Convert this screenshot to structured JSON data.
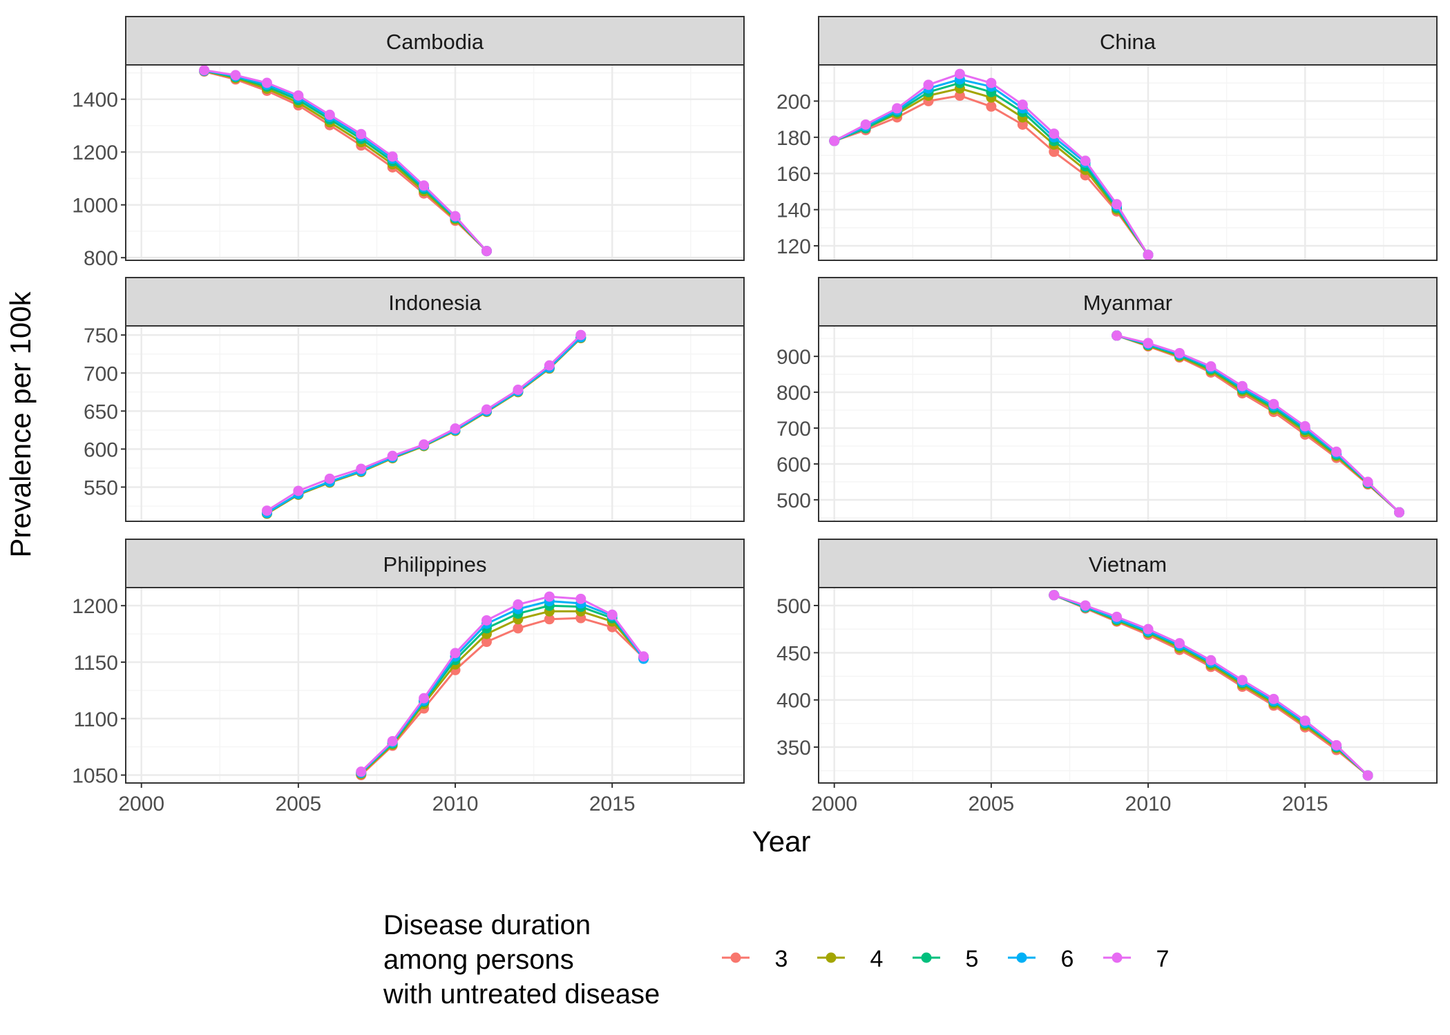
{
  "figure": {
    "xlabel": "Year",
    "ylabel": "Prevalence per 100k",
    "legend_title": [
      "Disease duration",
      "among persons",
      "with untreated disease"
    ],
    "legend_position": "bottom"
  },
  "colors": {
    "3": "#F8766D",
    "4": "#A3A500",
    "5": "#00BF7D",
    "6": "#00B0F6",
    "7": "#E76BF3",
    "strip_bg": "#D9D9D9",
    "panel_border": "#333333",
    "grid_major": "#EBEBEB",
    "grid_minor": "#F5F5F5"
  },
  "chart_data": [
    {
      "type": "line",
      "panel": "Cambodia",
      "x": [
        2002,
        2003,
        2004,
        2005,
        2006,
        2007,
        2008,
        2009,
        2010,
        2011
      ],
      "xlim": [
        1999.5,
        2019.2
      ],
      "xticks": [
        2000,
        2005,
        2010,
        2015
      ],
      "ylim": [
        790,
        1530
      ],
      "yticks": [
        800,
        1000,
        1200,
        1400
      ],
      "series": [
        {
          "name": "3",
          "values": [
            1505,
            1475,
            1432,
            1377,
            1302,
            1225,
            1142,
            1043,
            940,
            825
          ]
        },
        {
          "name": "4",
          "values": [
            1507,
            1480,
            1440,
            1387,
            1313,
            1238,
            1154,
            1052,
            945,
            825
          ]
        },
        {
          "name": "5",
          "values": [
            1508,
            1484,
            1448,
            1397,
            1324,
            1250,
            1165,
            1060,
            950,
            825
          ]
        },
        {
          "name": "6",
          "values": [
            1508,
            1487,
            1455,
            1406,
            1333,
            1260,
            1175,
            1067,
            954,
            825
          ]
        },
        {
          "name": "7",
          "values": [
            1510,
            1491,
            1462,
            1414,
            1341,
            1268,
            1183,
            1073,
            957,
            825
          ]
        }
      ]
    },
    {
      "type": "line",
      "panel": "China",
      "x": [
        2000,
        2001,
        2002,
        2003,
        2004,
        2005,
        2006,
        2007,
        2008,
        2009,
        2010
      ],
      "xlim": [
        1999.5,
        2019.2
      ],
      "xticks": [
        2000,
        2005,
        2010,
        2015
      ],
      "ylim": [
        112,
        220
      ],
      "yticks": [
        120,
        140,
        160,
        180,
        200
      ],
      "series": [
        {
          "name": "3",
          "values": [
            178,
            184,
            191,
            200,
            203,
            197,
            187,
            172,
            159,
            139,
            115
          ]
        },
        {
          "name": "4",
          "values": [
            178,
            185,
            193,
            203,
            207,
            202,
            191,
            176,
            162,
            140,
            115
          ]
        },
        {
          "name": "5",
          "values": [
            178,
            185,
            194,
            205,
            210,
            205,
            194,
            178,
            164,
            141,
            115
          ]
        },
        {
          "name": "6",
          "values": [
            178,
            186,
            195,
            207,
            212,
            208,
            196,
            180,
            166,
            142,
            115
          ]
        },
        {
          "name": "7",
          "values": [
            178,
            187,
            196,
            209,
            215,
            210,
            198,
            182,
            167,
            143,
            115
          ]
        }
      ]
    },
    {
      "type": "line",
      "panel": "Indonesia",
      "x": [
        2004,
        2005,
        2006,
        2007,
        2008,
        2009,
        2010,
        2011,
        2012,
        2013,
        2014
      ],
      "xlim": [
        1999.5,
        2019.2
      ],
      "xticks": [
        2000,
        2005,
        2010,
        2015
      ],
      "ylim": [
        505,
        762
      ],
      "yticks": [
        550,
        600,
        650,
        700,
        750
      ],
      "series": [
        {
          "name": "3",
          "values": [
            515,
            540,
            556,
            570,
            588,
            604,
            624,
            649,
            675,
            706,
            746
          ]
        },
        {
          "name": "4",
          "values": [
            515,
            540,
            556,
            570,
            588,
            604,
            624,
            649,
            675,
            706,
            746
          ]
        },
        {
          "name": "5",
          "values": [
            516,
            541,
            557,
            571,
            589,
            605,
            625,
            650,
            676,
            707,
            747
          ]
        },
        {
          "name": "6",
          "values": [
            516,
            541,
            557,
            571,
            589,
            605,
            625,
            650,
            676,
            707,
            747
          ]
        },
        {
          "name": "7",
          "values": [
            519,
            545,
            561,
            574,
            591,
            606,
            627,
            652,
            678,
            710,
            750
          ]
        }
      ]
    },
    {
      "type": "line",
      "panel": "Myanmar",
      "x": [
        2009,
        2010,
        2011,
        2012,
        2013,
        2014,
        2015,
        2016,
        2017,
        2018
      ],
      "xlim": [
        1999.5,
        2019.2
      ],
      "xticks": [
        2000,
        2005,
        2010,
        2015
      ],
      "ylim": [
        440,
        985
      ],
      "yticks": [
        500,
        600,
        700,
        800,
        900
      ],
      "series": [
        {
          "name": "3",
          "values": [
            958,
            928,
            897,
            855,
            797,
            745,
            682,
            617,
            543,
            465
          ]
        },
        {
          "name": "4",
          "values": [
            958,
            930,
            900,
            860,
            803,
            752,
            689,
            622,
            545,
            465
          ]
        },
        {
          "name": "5",
          "values": [
            958,
            932,
            903,
            864,
            808,
            757,
            695,
            626,
            547,
            465
          ]
        },
        {
          "name": "6",
          "values": [
            958,
            934,
            906,
            868,
            812,
            762,
            700,
            630,
            548,
            465
          ]
        },
        {
          "name": "7",
          "values": [
            958,
            937,
            909,
            872,
            817,
            767,
            705,
            634,
            550,
            465
          ]
        }
      ]
    },
    {
      "type": "line",
      "panel": "Philippines",
      "x": [
        2007,
        2008,
        2009,
        2010,
        2011,
        2012,
        2013,
        2014,
        2015,
        2016
      ],
      "xlim": [
        1999.5,
        2019.2
      ],
      "xticks": [
        2000,
        2005,
        2010,
        2015
      ],
      "ylim": [
        1043,
        1216
      ],
      "yticks": [
        1050,
        1100,
        1150,
        1200
      ],
      "series": [
        {
          "name": "3",
          "values": [
            1050,
            1076,
            1109,
            1143,
            1168,
            1180,
            1188,
            1189,
            1181,
            1154
          ]
        },
        {
          "name": "4",
          "values": [
            1051,
            1077,
            1113,
            1148,
            1175,
            1188,
            1195,
            1195,
            1186,
            1154
          ]
        },
        {
          "name": "5",
          "values": [
            1052,
            1078,
            1115,
            1152,
            1180,
            1193,
            1200,
            1199,
            1189,
            1154
          ]
        },
        {
          "name": "6",
          "values": [
            1052,
            1079,
            1116,
            1155,
            1184,
            1197,
            1204,
            1202,
            1191,
            1153
          ]
        },
        {
          "name": "7",
          "values": [
            1053,
            1080,
            1118,
            1158,
            1187,
            1201,
            1208,
            1206,
            1192,
            1155
          ]
        }
      ]
    },
    {
      "type": "line",
      "panel": "Vietnam",
      "x": [
        2007,
        2008,
        2009,
        2010,
        2011,
        2012,
        2013,
        2014,
        2015,
        2016,
        2017
      ],
      "xlim": [
        1999.5,
        2019.2
      ],
      "xticks": [
        2000,
        2005,
        2010,
        2015
      ],
      "ylim": [
        312,
        519
      ],
      "yticks": [
        350,
        400,
        450,
        500
      ],
      "series": [
        {
          "name": "3",
          "values": [
            511,
            497,
            483,
            469,
            453,
            435,
            414,
            394,
            371,
            347,
            320
          ]
        },
        {
          "name": "4",
          "values": [
            511,
            498,
            484,
            471,
            455,
            437,
            416,
            396,
            373,
            349,
            320
          ]
        },
        {
          "name": "5",
          "values": [
            511,
            498,
            485,
            472,
            457,
            439,
            418,
            398,
            375,
            350,
            320
          ]
        },
        {
          "name": "6",
          "values": [
            511,
            499,
            486,
            473,
            458,
            440,
            419,
            399,
            376,
            351,
            320
          ]
        },
        {
          "name": "7",
          "values": [
            511,
            500,
            488,
            475,
            460,
            442,
            421,
            401,
            378,
            352,
            320
          ]
        }
      ]
    }
  ]
}
